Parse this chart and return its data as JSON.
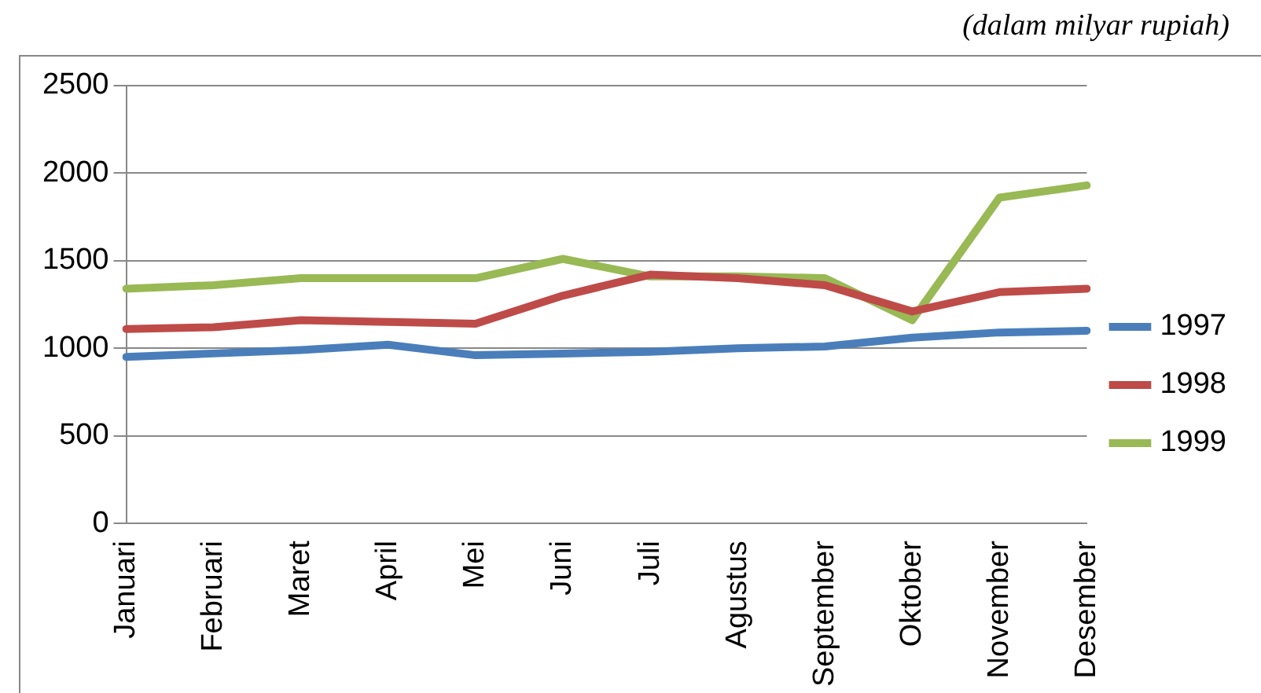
{
  "chart_data": {
    "type": "line",
    "subtitle": "(dalam milyar rupiah)",
    "categories": [
      "Januari",
      "Februari",
      "Maret",
      "April",
      "Mei",
      "Juni",
      "Juli",
      "Agustus",
      "September",
      "Oktober",
      "November",
      "Desember"
    ],
    "series": [
      {
        "name": "1997",
        "color": "#4a7ebb",
        "values": [
          950,
          970,
          990,
          1020,
          960,
          970,
          980,
          1000,
          1010,
          1060,
          1090,
          1100
        ]
      },
      {
        "name": "1998",
        "color": "#be4b48",
        "values": [
          1110,
          1120,
          1160,
          1150,
          1140,
          1300,
          1420,
          1400,
          1360,
          1210,
          1320,
          1340
        ]
      },
      {
        "name": "1999",
        "color": "#98b954",
        "values": [
          1340,
          1360,
          1400,
          1400,
          1400,
          1510,
          1410,
          1410,
          1400,
          1160,
          1860,
          1930
        ]
      }
    ],
    "ylim": [
      0,
      2500
    ],
    "yticks": [
      0,
      500,
      1000,
      1500,
      2000,
      2500
    ],
    "grid": "y",
    "legend": "right",
    "marker": "none",
    "line_style": "solid"
  }
}
